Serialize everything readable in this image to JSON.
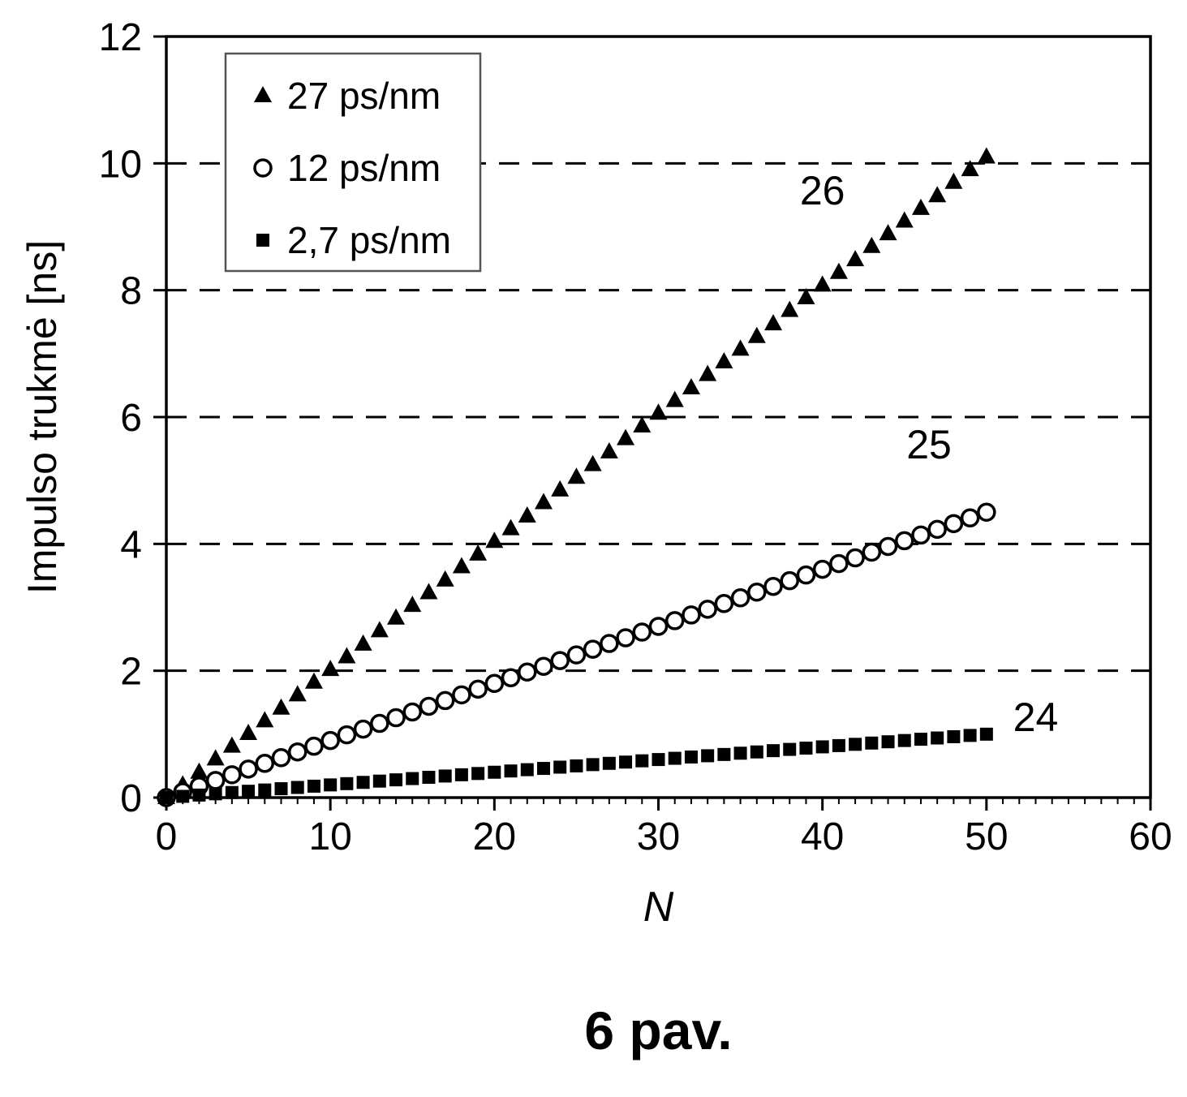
{
  "caption": "6 pav.",
  "chart_data": {
    "type": "scatter",
    "title": "",
    "xlabel": "N",
    "ylabel": "Impulso trukmė [ns]",
    "xlim": [
      0,
      60
    ],
    "ylim": [
      0,
      12
    ],
    "x_ticks": [
      0,
      10,
      20,
      30,
      40,
      50,
      60
    ],
    "y_ticks": [
      0,
      2,
      4,
      6,
      8,
      10,
      12
    ],
    "gridlines_y": [
      2,
      4,
      6,
      8,
      10
    ],
    "grid_style": "dashed-horizontal",
    "legend_position": "top-left-inside",
    "x": [
      0,
      1,
      2,
      3,
      4,
      5,
      6,
      7,
      8,
      9,
      10,
      11,
      12,
      13,
      14,
      15,
      16,
      17,
      18,
      19,
      20,
      21,
      22,
      23,
      24,
      25,
      26,
      27,
      28,
      29,
      30,
      31,
      32,
      33,
      34,
      35,
      36,
      37,
      38,
      39,
      40,
      41,
      42,
      43,
      44,
      45,
      46,
      47,
      48,
      49,
      50
    ],
    "series": [
      {
        "name": "27 ps/nm",
        "marker": "filled-triangle",
        "curve_label": "26",
        "values": [
          0,
          0.2,
          0.4,
          0.61,
          0.81,
          1.01,
          1.21,
          1.41,
          1.62,
          1.82,
          2.02,
          2.22,
          2.42,
          2.63,
          2.83,
          3.03,
          3.23,
          3.43,
          3.64,
          3.84,
          4.04,
          4.24,
          4.44,
          4.65,
          4.85,
          5.05,
          5.25,
          5.45,
          5.66,
          5.86,
          6.06,
          6.26,
          6.46,
          6.67,
          6.87,
          7.07,
          7.27,
          7.47,
          7.68,
          7.88,
          8.08,
          8.28,
          8.48,
          8.69,
          8.89,
          9.09,
          9.29,
          9.49,
          9.7,
          9.9,
          10.1
        ]
      },
      {
        "name": "12 ps/nm",
        "marker": "open-circle",
        "curve_label": "25",
        "values": [
          0,
          0.09,
          0.18,
          0.27,
          0.36,
          0.45,
          0.54,
          0.63,
          0.72,
          0.81,
          0.9,
          0.99,
          1.08,
          1.17,
          1.26,
          1.35,
          1.44,
          1.53,
          1.62,
          1.71,
          1.8,
          1.89,
          1.98,
          2.07,
          2.16,
          2.25,
          2.34,
          2.43,
          2.52,
          2.61,
          2.7,
          2.79,
          2.88,
          2.97,
          3.06,
          3.15,
          3.24,
          3.33,
          3.42,
          3.51,
          3.6,
          3.69,
          3.78,
          3.87,
          3.96,
          4.05,
          4.14,
          4.23,
          4.32,
          4.41,
          4.5
        ]
      },
      {
        "name": "2,7 ps/nm",
        "marker": "filled-square",
        "curve_label": "24",
        "values": [
          0,
          0.02,
          0.04,
          0.06,
          0.08,
          0.1,
          0.12,
          0.14,
          0.16,
          0.18,
          0.2,
          0.22,
          0.24,
          0.26,
          0.28,
          0.3,
          0.32,
          0.34,
          0.36,
          0.38,
          0.4,
          0.42,
          0.44,
          0.46,
          0.48,
          0.5,
          0.52,
          0.54,
          0.56,
          0.58,
          0.6,
          0.62,
          0.64,
          0.66,
          0.68,
          0.7,
          0.72,
          0.74,
          0.76,
          0.78,
          0.8,
          0.82,
          0.84,
          0.86,
          0.88,
          0.9,
          0.92,
          0.94,
          0.96,
          0.98,
          1.0
        ]
      }
    ],
    "annotations": [
      {
        "text": "26",
        "x": 40,
        "y": 9.35
      },
      {
        "text": "25",
        "x": 46.5,
        "y": 5.35
      },
      {
        "text": "24",
        "x": 53,
        "y": 1.05
      }
    ]
  }
}
